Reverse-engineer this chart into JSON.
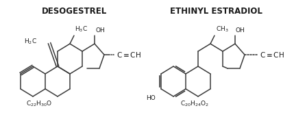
{
  "title_left": "DESOGESTREL",
  "title_right": "ETHINYL ESTRADIOL",
  "formula_left": "C",
  "formula_left_sub1": "22",
  "formula_left_main2": "H",
  "formula_left_sub2": "30",
  "formula_left_end": "O",
  "formula_right": "C",
  "formula_right_sub1": "20",
  "formula_right_main2": "H",
  "formula_right_sub2": "24",
  "formula_right_end": "O",
  "formula_right_sub_end": "2",
  "background_color": "#ffffff",
  "line_color": "#3a3a3a",
  "text_color": "#1a1a1a",
  "title_fontsize": 8.5,
  "label_fontsize": 7.0,
  "sub_fontsize": 5.5
}
